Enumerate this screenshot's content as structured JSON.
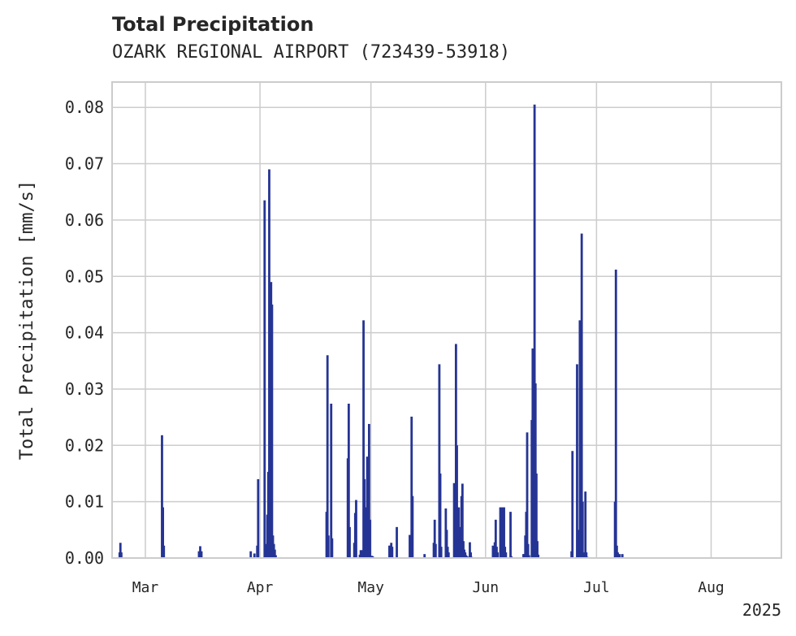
{
  "header": {
    "title": "Total Precipitation",
    "subtitle": "OZARK REGIONAL AIRPORT (723439-53918)"
  },
  "chart_data": {
    "type": "bar",
    "ylabel": "Total Precipitation [mm/s]",
    "xlabel": "",
    "xlim": [
      "2025-02-20",
      "2025-08-20"
    ],
    "ylim": [
      0,
      0.0845
    ],
    "x_ticks": [
      {
        "date": "2025-03-01",
        "label": "Mar"
      },
      {
        "date": "2025-04-01",
        "label": "Apr"
      },
      {
        "date": "2025-05-01",
        "label": "May"
      },
      {
        "date": "2025-06-01",
        "label": "Jun"
      },
      {
        "date": "2025-07-01",
        "label": "Jul"
      },
      {
        "date": "2025-08-01",
        "label": "Aug"
      }
    ],
    "x_offset_label": "2025",
    "y_ticks": [
      0.0,
      0.01,
      0.02,
      0.03,
      0.04,
      0.05,
      0.06,
      0.07,
      0.08
    ],
    "y_tick_labels": [
      "0.00",
      "0.01",
      "0.02",
      "0.03",
      "0.04",
      "0.05",
      "0.06",
      "0.07",
      "0.08"
    ],
    "grid": true,
    "bar_color": "#253494",
    "series": [
      {
        "x": [
          "2025-02-22T01:00",
          "2025-02-22T06:00",
          "2025-02-22T12:00",
          "2025-03-05T12:00",
          "2025-03-05T18:00",
          "2025-03-06T00:00",
          "2025-03-15T12:00",
          "2025-03-15T20:00",
          "2025-03-16T04:00",
          "2025-03-29T12:00",
          "2025-03-30T12:00",
          "2025-03-31T06:00",
          "2025-03-31T12:00",
          "2025-04-02T06:00",
          "2025-04-02T12:00",
          "2025-04-03T00:00",
          "2025-04-03T06:00",
          "2025-04-03T12:00",
          "2025-04-03T18:00",
          "2025-04-04T00:00",
          "2025-04-04T06:00",
          "2025-04-04T12:00",
          "2025-04-04T18:00",
          "2025-04-05T00:00",
          "2025-04-05T06:00",
          "2025-04-19T00:00",
          "2025-04-19T06:00",
          "2025-04-19T12:00",
          "2025-04-20T06:00",
          "2025-04-20T12:00",
          "2025-04-24T18:00",
          "2025-04-25T00:00",
          "2025-04-25T06:00",
          "2025-04-26T12:00",
          "2025-04-26T18:00",
          "2025-04-27T00:00",
          "2025-04-28T00:00",
          "2025-04-28T06:00",
          "2025-04-28T12:00",
          "2025-04-28T18:00",
          "2025-04-29T00:00",
          "2025-04-29T06:00",
          "2025-04-29T12:00",
          "2025-04-29T18:00",
          "2025-04-30T00:00",
          "2025-04-30T06:00",
          "2025-04-30T12:00",
          "2025-04-30T18:00",
          "2025-05-01T06:00",
          "2025-05-01T12:00",
          "2025-05-06T00:00",
          "2025-05-06T06:00",
          "2025-05-06T12:00",
          "2025-05-06T18:00",
          "2025-05-08T00:00",
          "2025-05-11T12:00",
          "2025-05-11T18:00",
          "2025-05-12T00:00",
          "2025-05-12T06:00",
          "2025-05-15T12:00",
          "2025-05-18T00:00",
          "2025-05-18T06:00",
          "2025-05-18T12:00",
          "2025-05-19T12:00",
          "2025-05-19T18:00",
          "2025-05-20T00:00",
          "2025-05-21T06:00",
          "2025-05-21T12:00",
          "2025-05-21T18:00",
          "2025-05-22T00:00",
          "2025-05-23T12:00",
          "2025-05-23T18:00",
          "2025-05-24T00:00",
          "2025-05-24T06:00",
          "2025-05-24T12:00",
          "2025-05-24T18:00",
          "2025-05-25T06:00",
          "2025-05-25T12:00",
          "2025-05-25T18:00",
          "2025-05-26T00:00",
          "2025-05-26T06:00",
          "2025-05-26T12:00",
          "2025-05-26T18:00",
          "2025-05-27T00:00",
          "2025-05-27T06:00",
          "2025-05-27T18:00",
          "2025-05-28T00:00",
          "2025-05-28T06:00",
          "2025-06-03T00:00",
          "2025-06-03T06:00",
          "2025-06-03T12:00",
          "2025-06-03T18:00",
          "2025-06-04T00:00",
          "2025-06-04T06:00",
          "2025-06-05T00:00",
          "2025-06-05T06:00",
          "2025-06-05T12:00",
          "2025-06-05T18:00",
          "2025-06-06T00:00",
          "2025-06-06T06:00",
          "2025-06-06T12:00",
          "2025-06-07T18:00",
          "2025-06-08T00:00",
          "2025-06-11T06:00",
          "2025-06-11T12:00",
          "2025-06-11T18:00",
          "2025-06-12T00:00",
          "2025-06-12T06:00",
          "2025-06-12T12:00",
          "2025-06-12T18:00",
          "2025-06-13T12:00",
          "2025-06-13T18:00",
          "2025-06-14T00:00",
          "2025-06-14T06:00",
          "2025-06-14T12:00",
          "2025-06-14T18:00",
          "2025-06-15T00:00",
          "2025-06-15T06:00",
          "2025-06-24T06:00",
          "2025-06-24T12:00",
          "2025-06-25T18:00",
          "2025-06-26T00:00",
          "2025-06-26T12:00",
          "2025-06-26T18:00",
          "2025-06-27T00:00",
          "2025-06-27T06:00",
          "2025-06-27T12:00",
          "2025-06-27T18:00",
          "2025-06-28T00:00",
          "2025-06-28T06:00",
          "2025-06-28T12:00",
          "2025-07-06T00:00",
          "2025-07-06T06:00",
          "2025-07-06T12:00",
          "2025-07-06T18:00",
          "2025-07-07T06:00",
          "2025-07-08T00:00"
        ],
        "values": [
          0.001,
          0.0027,
          0.001,
          0.0218,
          0.009,
          0.0022,
          0.0012,
          0.0021,
          0.0012,
          0.0012,
          0.0008,
          0.0022,
          0.014,
          0.0635,
          0.0025,
          0.0077,
          0.0153,
          0.069,
          0.022,
          0.049,
          0.045,
          0.004,
          0.0025,
          0.0015,
          0.0005,
          0.0082,
          0.036,
          0.004,
          0.0274,
          0.0035,
          0.0177,
          0.0274,
          0.0055,
          0.0027,
          0.008,
          0.0103,
          0.0006,
          0.0014,
          0.0012,
          0.0014,
          0.0422,
          0.014,
          0.009,
          0.0035,
          0.018,
          0.012,
          0.0238,
          0.0068,
          0.0004,
          0.0003,
          0.0022,
          0.0022,
          0.0027,
          0.002,
          0.0055,
          0.0041,
          0.0012,
          0.0251,
          0.011,
          0.0007,
          0.0027,
          0.0068,
          0.0025,
          0.0344,
          0.015,
          0.002,
          0.0088,
          0.005,
          0.002,
          0.001,
          0.0133,
          0.008,
          0.038,
          0.02,
          0.0025,
          0.009,
          0.0055,
          0.011,
          0.0132,
          0.003,
          0.0015,
          0.001,
          0.0005,
          0.0003,
          0.0002,
          0.0028,
          0.001,
          0.0002,
          0.0022,
          0.0018,
          0.0028,
          0.0068,
          0.002,
          0.001,
          0.009,
          0.0025,
          0.009,
          0.003,
          0.009,
          0.002,
          0.001,
          0.0082,
          0.0003,
          0.0007,
          0.0007,
          0.004,
          0.0082,
          0.0223,
          0.0025,
          0.0005,
          0.0245,
          0.0372,
          0.013,
          0.0805,
          0.031,
          0.015,
          0.003,
          0.0006,
          0.0012,
          0.019,
          0.0344,
          0.005,
          0.0422,
          0.006,
          0.0576,
          0.01,
          0.001,
          0.0006,
          0.0118,
          0.001,
          0.0002,
          0.01,
          0.0512,
          0.0022,
          0.001,
          0.0007,
          0.0007
        ]
      }
    ]
  }
}
